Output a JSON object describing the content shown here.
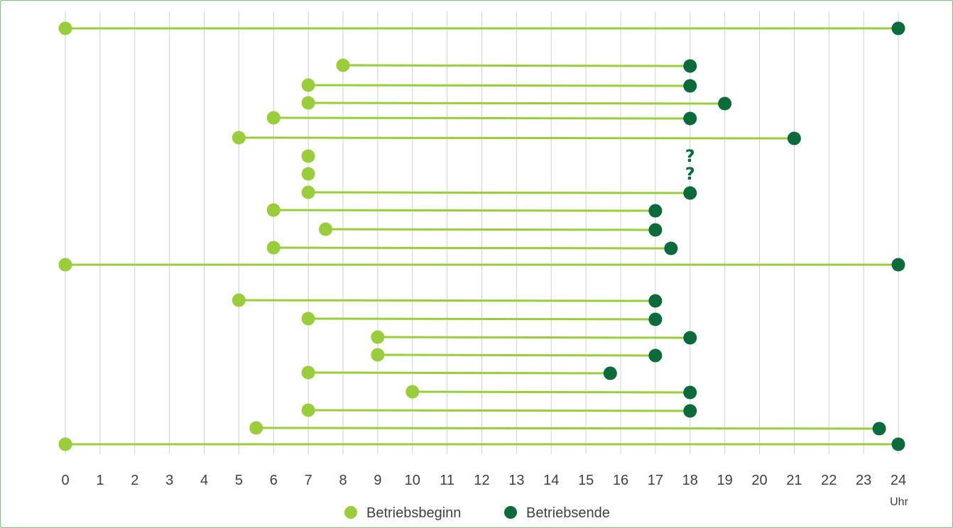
{
  "chart_data": {
    "type": "dumbbell",
    "title": "",
    "xlabel": "Uhr",
    "ylabel": "",
    "xlim": [
      0,
      24
    ],
    "x_ticks": [
      "0",
      "1",
      "2",
      "3",
      "4",
      "5",
      "6",
      "7",
      "8",
      "9",
      "10",
      "11",
      "12",
      "13",
      "14",
      "15",
      "16",
      "17",
      "18",
      "19",
      "20",
      "21",
      "22",
      "23",
      "24"
    ],
    "grid": "vertical",
    "legend_position": "bottom-center",
    "colors": {
      "start": "#9acd3c",
      "end": "#0b6b3a",
      "line": "#9acd3c",
      "grid": "#d0d0d0"
    },
    "series": [
      {
        "name": "Betriebsbeginn",
        "color": "#9acd3c"
      },
      {
        "name": "Betriebsende",
        "color": "#0b6b3a"
      }
    ],
    "rows": [
      {
        "start": 0,
        "end": 24
      },
      {
        "start": 8,
        "end": 18
      },
      {
        "start": 7,
        "end": 18
      },
      {
        "start": 7,
        "end": 19
      },
      {
        "start": 6,
        "end": 18
      },
      {
        "start": 5,
        "end": 21
      },
      {
        "start": 7,
        "end": null,
        "end_label": "?"
      },
      {
        "start": 7,
        "end": null,
        "end_label": "?"
      },
      {
        "start": 7,
        "end": 18
      },
      {
        "start": 6,
        "end": 17
      },
      {
        "start": 7.5,
        "end": 17
      },
      {
        "start": 6,
        "end": 17.45
      },
      {
        "start": 0,
        "end": 24
      },
      {
        "start": 5,
        "end": 17
      },
      {
        "start": 7,
        "end": 17
      },
      {
        "start": 9,
        "end": 18
      },
      {
        "start": 9,
        "end": 17
      },
      {
        "start": 7,
        "end": 15.7
      },
      {
        "start": 10,
        "end": 18
      },
      {
        "start": 7,
        "end": 18
      },
      {
        "start": 5.5,
        "end": 23.45
      },
      {
        "start": 0,
        "end": 24
      }
    ]
  }
}
